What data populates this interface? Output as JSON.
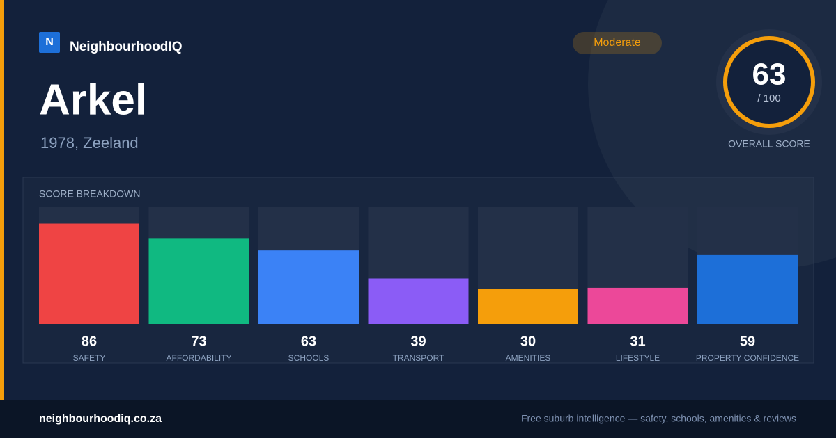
{
  "brand": {
    "logo_letter": "N",
    "name": "NeighbourhoodIQ"
  },
  "header": {
    "title": "Arkel",
    "subtitle": "1978, Zeeland",
    "badge": "Moderate"
  },
  "score": {
    "value": 63,
    "max_label": "/ 100",
    "label": "OVERALL SCORE"
  },
  "chart_data": {
    "type": "bar",
    "title": "SCORE BREAKDOWN",
    "categories": [
      "SAFETY",
      "AFFORDABILITY",
      "SCHOOLS",
      "TRANSPORT",
      "AMENITIES",
      "LIFESTYLE",
      "PROPERTY CONFIDENCE"
    ],
    "values": [
      86,
      73,
      63,
      39,
      30,
      31,
      59
    ],
    "colors": [
      "#ef4444",
      "#10b981",
      "#3b82f6",
      "#8b5cf6",
      "#f59e0b",
      "#ec4899",
      "#1d6fd8"
    ],
    "ylim": [
      0,
      100
    ]
  },
  "footer": {
    "url": "neighbourhoodiq.co.za",
    "tagline": "Free suburb intelligence — safety, schools, amenities & reviews"
  }
}
